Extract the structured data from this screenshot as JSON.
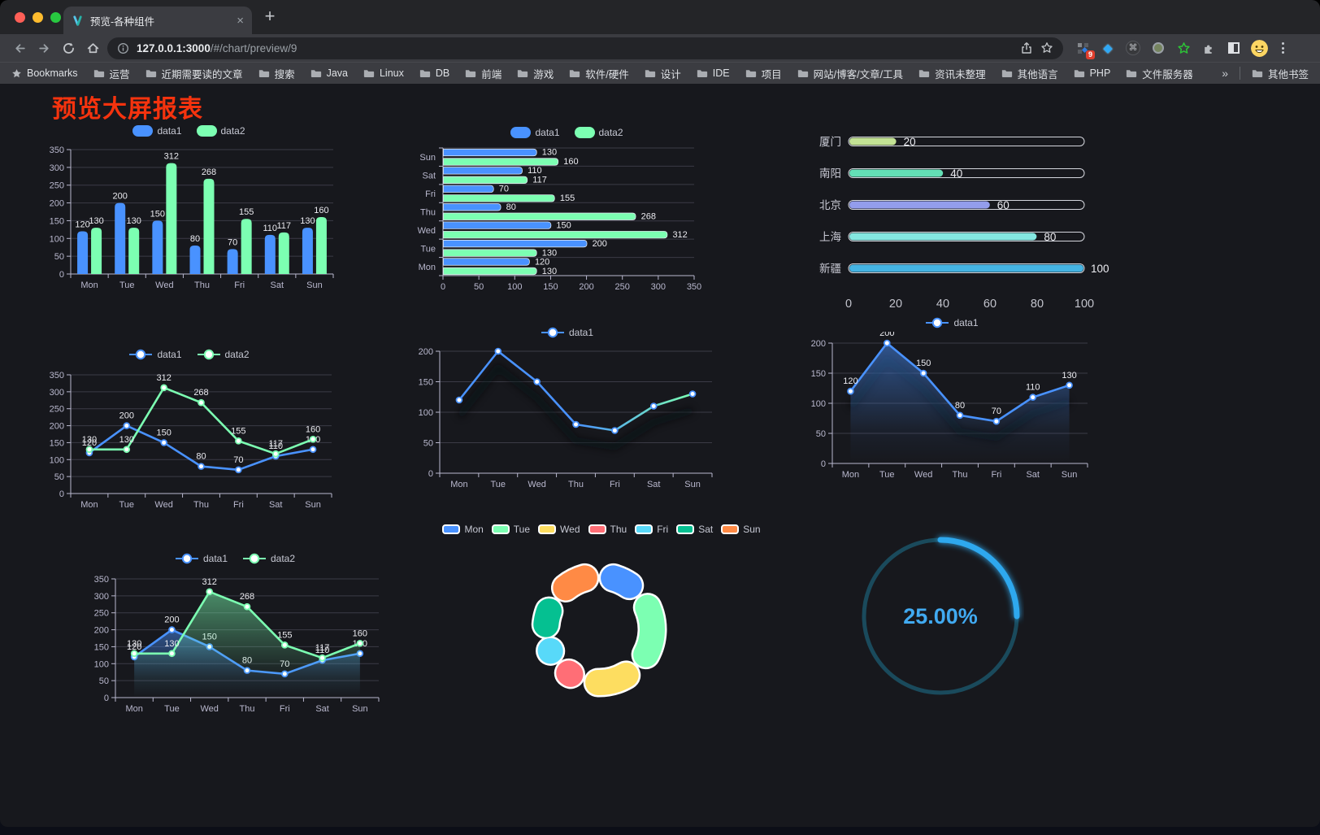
{
  "browser": {
    "tab_title": "预览-各种组件",
    "close_tab_label": "×",
    "new_tab_label": "+",
    "url_host": "127.0.0.1:3000",
    "url_path": "/#/chart/preview/9",
    "extension_badge": "9",
    "bookmarks_bar": {
      "first_item": "Bookmarks",
      "folders": [
        "运营",
        "近期需要读的文章",
        "搜索",
        "Java",
        "Linux",
        "DB",
        "前端",
        "游戏",
        "软件/硬件",
        "设计",
        "IDE",
        "项目",
        "网站/博客/文章/工具",
        "资讯未整理",
        "其他语言",
        "PHP",
        "文件服务器"
      ],
      "overflow": "»",
      "other_bookmarks": "其他书签"
    }
  },
  "page": {
    "title": "预览大屏报表"
  },
  "palette": {
    "axis_label": "#b9b8ce",
    "axis_line": "#b9b8ce",
    "grid": "#3b3b46",
    "value_label": "#ebebf0",
    "blue": "#4992ff",
    "green": "#7cffb2"
  },
  "chart_data": [
    {
      "name": "grouped-bar",
      "type": "bar",
      "categories": [
        "Mon",
        "Tue",
        "Wed",
        "Thu",
        "Fri",
        "Sat",
        "Sun"
      ],
      "series": [
        {
          "name": "data1",
          "color": "#4992ff",
          "values": [
            120,
            200,
            150,
            80,
            70,
            110,
            130
          ]
        },
        {
          "name": "data2",
          "color": "#7cffb2",
          "values": [
            130,
            130,
            312,
            268,
            155,
            117,
            160
          ]
        }
      ],
      "ylim": [
        0,
        350
      ],
      "ytick_step": 50,
      "value_labels": true,
      "legend": "rect"
    },
    {
      "name": "grouped-horizontal-bar",
      "type": "hbar",
      "categories": [
        "Mon",
        "Tue",
        "Wed",
        "Thu",
        "Fri",
        "Sat",
        "Sun"
      ],
      "series": [
        {
          "name": "data1",
          "color": "#4992ff",
          "values": [
            120,
            200,
            150,
            80,
            70,
            110,
            130
          ]
        },
        {
          "name": "data2",
          "color": "#7cffb2",
          "values": [
            130,
            130,
            312,
            268,
            155,
            117,
            160
          ]
        }
      ],
      "xlim": [
        0,
        350
      ],
      "xtick_step": 50,
      "value_labels": true,
      "legend": "rect"
    },
    {
      "name": "capsule-progress",
      "type": "capsule",
      "xlim": [
        0,
        100
      ],
      "xticks": [
        0,
        20,
        40,
        60,
        80,
        100
      ],
      "rows": [
        {
          "label": "厦门",
          "value": 20,
          "color": "#c3e294"
        },
        {
          "label": "南阳",
          "value": 40,
          "color": "#63dfb5"
        },
        {
          "label": "北京",
          "value": 60,
          "color": "#939dec"
        },
        {
          "label": "上海",
          "value": 80,
          "color": "#84e7e1"
        },
        {
          "label": "新疆",
          "value": 100,
          "color": "#45b4e3"
        }
      ]
    },
    {
      "name": "two-series-line",
      "type": "line",
      "categories": [
        "Mon",
        "Tue",
        "Wed",
        "Thu",
        "Fri",
        "Sat",
        "Sun"
      ],
      "series": [
        {
          "name": "data1",
          "color": "#4992ff",
          "values": [
            120,
            200,
            150,
            80,
            70,
            110,
            130
          ]
        },
        {
          "name": "data2",
          "color": "#7cffb2",
          "values": [
            130,
            130,
            312,
            268,
            155,
            117,
            160
          ]
        }
      ],
      "ylim": [
        0,
        350
      ],
      "ytick_step": 50,
      "value_labels": true,
      "legend": "line"
    },
    {
      "name": "gradient-line",
      "type": "line",
      "categories": [
        "Mon",
        "Tue",
        "Wed",
        "Thu",
        "Fri",
        "Sat",
        "Sun"
      ],
      "series": [
        {
          "name": "data1",
          "color": "#4992ff",
          "gradient": [
            "#4992ff",
            "#4992ff",
            "#7cffb2"
          ],
          "values": [
            120,
            200,
            150,
            80,
            70,
            110,
            130
          ]
        }
      ],
      "ylim": [
        0,
        200
      ],
      "ytick_step": 50,
      "value_labels": false,
      "shadow": true,
      "legend": "line"
    },
    {
      "name": "area-line",
      "type": "line",
      "categories": [
        "Mon",
        "Tue",
        "Wed",
        "Thu",
        "Fri",
        "Sat",
        "Sun"
      ],
      "series": [
        {
          "name": "data1",
          "color": "#4992ff",
          "area": true,
          "values": [
            120,
            200,
            150,
            80,
            70,
            110,
            130
          ]
        }
      ],
      "ylim": [
        0,
        200
      ],
      "ytick_step": 50,
      "value_labels": true,
      "shadow": true,
      "legend": "line"
    },
    {
      "name": "two-series-area-line",
      "type": "line",
      "categories": [
        "Mon",
        "Tue",
        "Wed",
        "Thu",
        "Fri",
        "Sat",
        "Sun"
      ],
      "series": [
        {
          "name": "data1",
          "color": "#4992ff",
          "area": true,
          "values": [
            120,
            200,
            150,
            80,
            70,
            110,
            130
          ]
        },
        {
          "name": "data2",
          "color": "#7cffb2",
          "area": true,
          "values": [
            130,
            130,
            312,
            268,
            155,
            117,
            160
          ]
        }
      ],
      "ylim": [
        0,
        350
      ],
      "ytick_step": 50,
      "value_labels": true,
      "legend": "line"
    },
    {
      "name": "donut-pie",
      "type": "pie",
      "legend": "pie",
      "items": [
        {
          "label": "Mon",
          "value": 120,
          "color": "#4992ff"
        },
        {
          "label": "Tue",
          "value": 200,
          "color": "#7cffb2"
        },
        {
          "label": "Wed",
          "value": 150,
          "color": "#fddd60"
        },
        {
          "label": "Thu",
          "value": 80,
          "color": "#ff6e76"
        },
        {
          "label": "Fri",
          "value": 70,
          "color": "#58d9f9"
        },
        {
          "label": "Sat",
          "value": 110,
          "color": "#05c091"
        },
        {
          "label": "Sun",
          "value": 130,
          "color": "#ff8a45"
        }
      ]
    },
    {
      "name": "gauge-progress",
      "type": "gauge",
      "value": 25,
      "label": "25.00%",
      "color": "#2ea8ee",
      "track_color": "#1a4a5c"
    }
  ]
}
